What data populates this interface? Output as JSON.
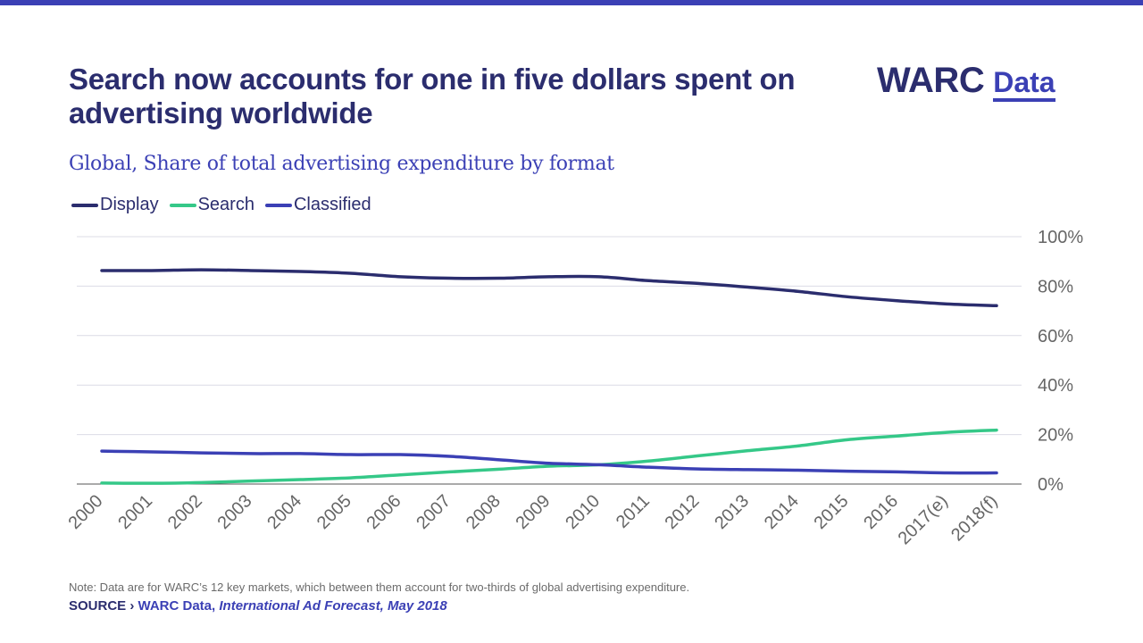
{
  "title": "Search now accounts for one in five dollars spent on advertising worldwide",
  "logo": {
    "brand": "WARC",
    "product": "Data"
  },
  "subtitle": "Global, Share of total advertising expenditure by format",
  "note": "Note: Data are for WARC’s 12 key markets, which between them account for two-thirds of global advertising expenditure.",
  "source": {
    "label": "SOURCE ›",
    "text": "WARC Data,",
    "publication": "International Ad Forecast, May 2018"
  },
  "colors": {
    "accent": "#3b40b5",
    "navy": "#2b2d6e",
    "display": "#2b2d6e",
    "search": "#35c888",
    "classified": "#3b40b5",
    "grid": "#dcdce6",
    "axis_text": "#666666"
  },
  "chart_data": {
    "type": "line",
    "title": "Search now accounts for one in five dollars spent on advertising worldwide",
    "subtitle": "Global, Share of total advertising expenditure by format",
    "xlabel": "",
    "ylabel": "",
    "categories": [
      "2000",
      "2001",
      "2002",
      "2003",
      "2004",
      "2005",
      "2006",
      "2007",
      "2008",
      "2009",
      "2010",
      "2011",
      "2012",
      "2013",
      "2014",
      "2015",
      "2016",
      "2017(e)",
      "2018(f)"
    ],
    "ylim": [
      0,
      100
    ],
    "yticks": [
      "0%",
      "20%",
      "40%",
      "60%",
      "80%",
      "100%"
    ],
    "grid": true,
    "legend_position": "top-left",
    "series": [
      {
        "name": "Display",
        "color": "#2b2d6e",
        "values": [
          86.3,
          86.3,
          86.6,
          86.3,
          85.9,
          85.2,
          83.8,
          83.2,
          83.2,
          83.8,
          83.8,
          82.2,
          81.1,
          79.6,
          77.9,
          75.7,
          74.1,
          72.8,
          72.1
        ]
      },
      {
        "name": "Search",
        "color": "#35c888",
        "values": [
          0.4,
          0.3,
          0.6,
          1.2,
          1.8,
          2.5,
          3.7,
          4.9,
          6.0,
          7.2,
          7.8,
          9.3,
          11.4,
          13.5,
          15.4,
          17.9,
          19.4,
          20.9,
          21.8
        ]
      },
      {
        "name": "Classified",
        "color": "#3b40b5",
        "values": [
          13.3,
          13.0,
          12.6,
          12.3,
          12.3,
          11.9,
          11.9,
          11.2,
          9.8,
          8.4,
          7.8,
          6.8,
          6.1,
          5.8,
          5.6,
          5.2,
          4.9,
          4.5,
          4.5
        ]
      }
    ]
  }
}
